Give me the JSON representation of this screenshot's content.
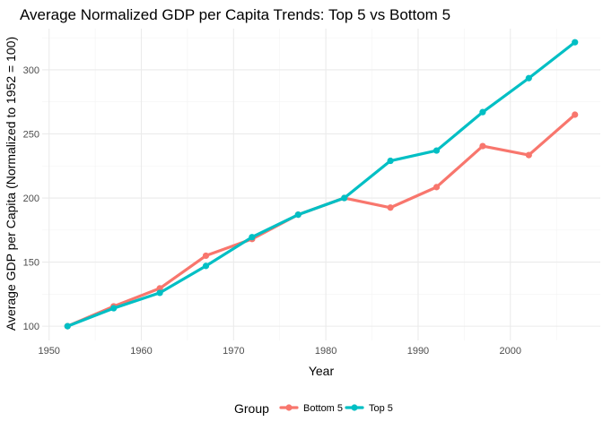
{
  "chart_data": {
    "type": "line",
    "title": "Average Normalized GDP per Capita Trends: Top 5 vs Bottom 5",
    "xlabel": "Year",
    "ylabel": "Average GDP per Capita (Normalized to 1952 = 100)",
    "xlim": [
      1949.25,
      2009.75
    ],
    "ylim": [
      88.9,
      332.1
    ],
    "x_ticks": [
      1950,
      1960,
      1970,
      1980,
      1990,
      2000
    ],
    "y_ticks": [
      100,
      150,
      200,
      250,
      300
    ],
    "grid": true,
    "legend_position": "bottom",
    "legend_title": "Group",
    "x": [
      1952,
      1957,
      1962,
      1967,
      1972,
      1977,
      1982,
      1987,
      1992,
      1997,
      2002,
      2007
    ],
    "series": [
      {
        "name": "Bottom 5",
        "color": "#F8766D",
        "values": [
          100,
          115.5,
          129.5,
          155,
          168,
          187,
          200,
          192.5,
          208.5,
          240.5,
          233.5,
          265
        ]
      },
      {
        "name": "Top 5",
        "color": "#00BFC4",
        "values": [
          100,
          114,
          126,
          147,
          169.5,
          187,
          200,
          229,
          237,
          267,
          293.5,
          321.5
        ]
      }
    ]
  }
}
